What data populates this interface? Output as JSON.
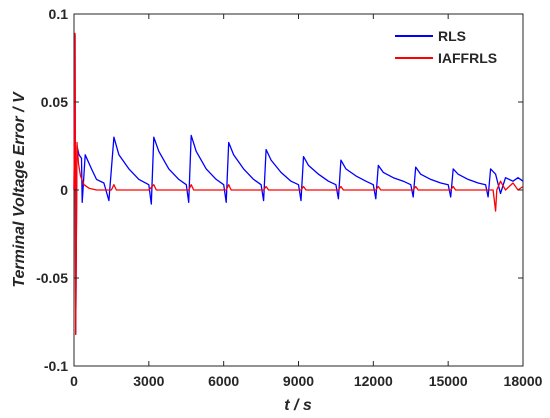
{
  "chart_data": {
    "type": "line",
    "title": "",
    "xlabel": "t  / s",
    "ylabel": "Terminal Voltage Error  / V",
    "xlim": [
      0,
      18000
    ],
    "ylim": [
      -0.1,
      0.1
    ],
    "x_ticks": [
      0,
      3000,
      6000,
      9000,
      12000,
      15000,
      18000
    ],
    "x_tick_labels": [
      "0",
      "3000",
      "6000",
      "9000",
      "12000",
      "15000",
      "18000"
    ],
    "y_ticks": [
      -0.1,
      -0.05,
      0,
      0.05,
      0.1
    ],
    "y_tick_labels": [
      "-0.1",
      "-0.05",
      "0",
      "0.05",
      "0.1"
    ],
    "grid": false,
    "legend_position": "top-right",
    "series": [
      {
        "name": "RLS",
        "color": "#0000ff",
        "points": [
          [
            0,
            0
          ],
          [
            40,
            0.088
          ],
          [
            70,
            -0.082
          ],
          [
            120,
            0.025
          ],
          [
            200,
            0.02
          ],
          [
            300,
            0.018
          ],
          [
            330,
            -0.007
          ],
          [
            450,
            0.02
          ],
          [
            700,
            0.012
          ],
          [
            900,
            0.006
          ],
          [
            1200,
            0.004
          ],
          [
            1400,
            -0.006
          ],
          [
            1600,
            0.03
          ],
          [
            1800,
            0.02
          ],
          [
            2200,
            0.012
          ],
          [
            2600,
            0.006
          ],
          [
            3000,
            0.003
          ],
          [
            3100,
            -0.008
          ],
          [
            3200,
            0.03
          ],
          [
            3400,
            0.022
          ],
          [
            3800,
            0.012
          ],
          [
            4200,
            0.006
          ],
          [
            4500,
            0.003
          ],
          [
            4600,
            -0.007
          ],
          [
            4700,
            0.031
          ],
          [
            4900,
            0.022
          ],
          [
            5300,
            0.012
          ],
          [
            5700,
            0.006
          ],
          [
            6000,
            0.003
          ],
          [
            6100,
            -0.007
          ],
          [
            6200,
            0.027
          ],
          [
            6400,
            0.02
          ],
          [
            6800,
            0.012
          ],
          [
            7200,
            0.006
          ],
          [
            7500,
            0.003
          ],
          [
            7600,
            -0.006
          ],
          [
            7700,
            0.023
          ],
          [
            7900,
            0.017
          ],
          [
            8300,
            0.01
          ],
          [
            8700,
            0.005
          ],
          [
            9000,
            0.003
          ],
          [
            9100,
            -0.006
          ],
          [
            9200,
            0.019
          ],
          [
            9400,
            0.014
          ],
          [
            9800,
            0.009
          ],
          [
            10200,
            0.005
          ],
          [
            10500,
            0.003
          ],
          [
            10600,
            -0.005
          ],
          [
            10700,
            0.017
          ],
          [
            10900,
            0.012
          ],
          [
            11300,
            0.008
          ],
          [
            11700,
            0.005
          ],
          [
            12000,
            0.003
          ],
          [
            12100,
            -0.005
          ],
          [
            12200,
            0.014
          ],
          [
            12400,
            0.01
          ],
          [
            12800,
            0.007
          ],
          [
            13200,
            0.005
          ],
          [
            13500,
            0.003
          ],
          [
            13600,
            -0.004
          ],
          [
            13700,
            0.013
          ],
          [
            13900,
            0.009
          ],
          [
            14300,
            0.006
          ],
          [
            14700,
            0.004
          ],
          [
            15000,
            0.003
          ],
          [
            15100,
            -0.004
          ],
          [
            15200,
            0.012
          ],
          [
            15400,
            0.009
          ],
          [
            15800,
            0.006
          ],
          [
            16200,
            0.004
          ],
          [
            16500,
            0.003
          ],
          [
            16600,
            -0.004
          ],
          [
            16700,
            0.012
          ],
          [
            16900,
            0.009
          ],
          [
            17100,
            -0.002
          ],
          [
            17300,
            0.007
          ],
          [
            17600,
            0.005
          ],
          [
            17800,
            0.007
          ],
          [
            18000,
            0.005
          ]
        ]
      },
      {
        "name": "IAFFRLS",
        "color": "#ff0000",
        "points": [
          [
            0,
            0
          ],
          [
            40,
            0.089
          ],
          [
            70,
            -0.082
          ],
          [
            120,
            0.027
          ],
          [
            180,
            0.015
          ],
          [
            260,
            0.008
          ],
          [
            400,
            0.003
          ],
          [
            600,
            0.001
          ],
          [
            900,
            0.0
          ],
          [
            1500,
            0.0
          ],
          [
            1600,
            0.003
          ],
          [
            1700,
            0.0
          ],
          [
            3000,
            0.0
          ],
          [
            3200,
            0.003
          ],
          [
            3300,
            0.0
          ],
          [
            4600,
            0.0
          ],
          [
            4700,
            0.003
          ],
          [
            4800,
            0.0
          ],
          [
            6100,
            0.0
          ],
          [
            6200,
            0.003
          ],
          [
            6300,
            0.0
          ],
          [
            7600,
            0.0
          ],
          [
            7700,
            0.002
          ],
          [
            7800,
            0.0
          ],
          [
            9100,
            0.0
          ],
          [
            9200,
            0.002
          ],
          [
            9300,
            0.0
          ],
          [
            10600,
            0.0
          ],
          [
            10700,
            0.002
          ],
          [
            10800,
            0.0
          ],
          [
            12100,
            0.0
          ],
          [
            12200,
            0.002
          ],
          [
            12300,
            0.0
          ],
          [
            13600,
            0.0
          ],
          [
            13700,
            0.002
          ],
          [
            13800,
            0.0
          ],
          [
            15100,
            0.0
          ],
          [
            15200,
            0.002
          ],
          [
            15300,
            0.0
          ],
          [
            16800,
            0.0
          ],
          [
            16900,
            -0.012
          ],
          [
            16950,
            0.0
          ],
          [
            17100,
            0.005
          ],
          [
            17300,
            0.0
          ],
          [
            17600,
            0.004
          ],
          [
            17800,
            0.0
          ],
          [
            18000,
            0.002
          ]
        ]
      }
    ]
  }
}
